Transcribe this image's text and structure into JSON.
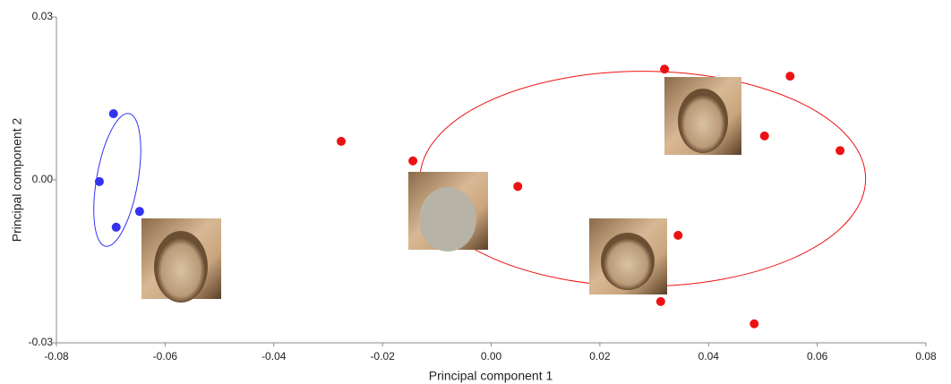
{
  "chart_data": {
    "type": "scatter",
    "x_label": "Principal component 1",
    "y_label": "Principal component 2",
    "xlim": [
      -0.08,
      0.08
    ],
    "ylim": [
      -0.03,
      0.03
    ],
    "xticks": [
      -0.08,
      -0.06,
      -0.04,
      -0.02,
      {
        "value": 0,
        "label": "0.00"
      },
      0.02,
      0.04,
      0.06,
      0.08
    ],
    "yticks": [
      -0.03,
      {
        "value": 0,
        "label": "0.00"
      },
      0.03
    ],
    "series": [
      {
        "color": "#3333f2",
        "x": [
          -0.0695,
          -0.0721,
          -0.069,
          -0.0647
        ],
        "values": [
          0.0122,
          -0.0003,
          -0.0087,
          -0.0058
        ]
      },
      {
        "color": "#ee1111",
        "x": [
          -0.0276,
          -0.0144,
          0.0049,
          0.0319,
          0.055,
          0.0503,
          0.0642,
          0.0344,
          0.0312,
          0.0484
        ],
        "values": [
          0.0071,
          0.0035,
          -0.0012,
          0.0204,
          0.0191,
          0.0081,
          0.0054,
          -0.0102,
          -0.0224,
          -0.0265
        ]
      }
    ],
    "ellipses": [
      {
        "color": "#3333f2",
        "center": [
          -0.0688,
          0.0
        ],
        "rx": 0.0038,
        "ry": 0.0124,
        "angle": 10
      },
      {
        "color": "#ee1111",
        "center": [
          0.0279,
          0.0002
        ],
        "rx": 0.041,
        "ry": 0.0198,
        "angle": 0
      }
    ]
  }
}
